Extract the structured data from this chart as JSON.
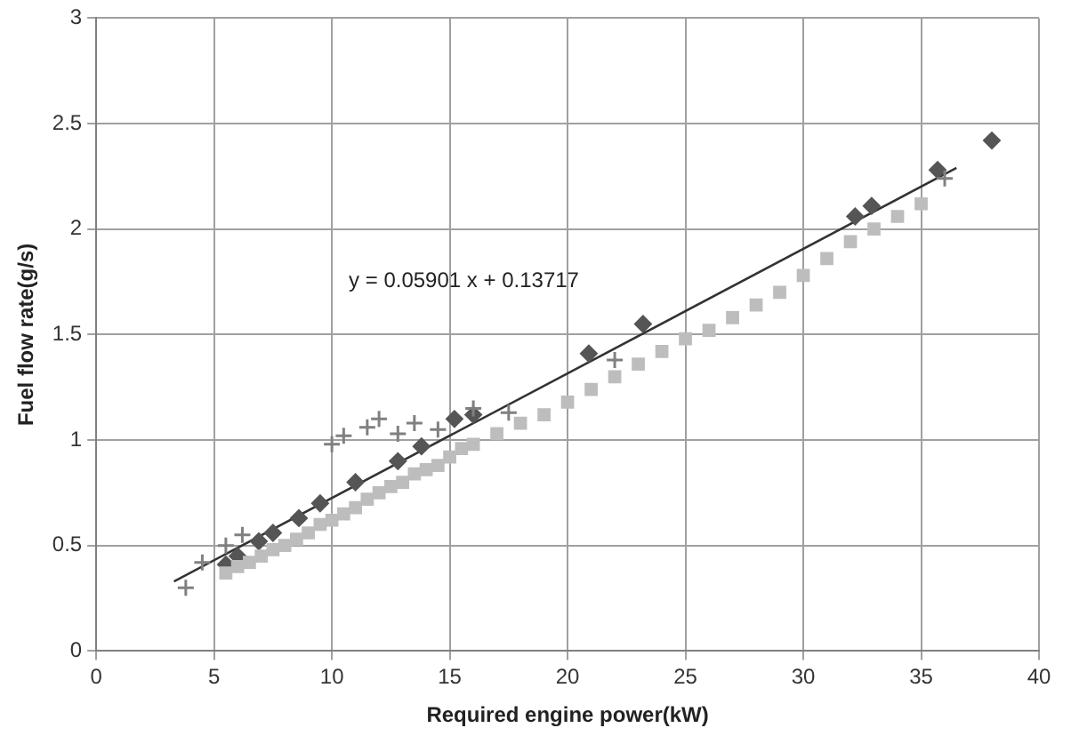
{
  "chart_data": {
    "type": "scatter",
    "xlabel": "Required engine power(kW)",
    "ylabel": "Fuel flow rate(g/s)",
    "xlim": [
      0,
      40
    ],
    "xticks": [
      0,
      5,
      10,
      15,
      20,
      25,
      30,
      35,
      40
    ],
    "ylim": [
      0,
      3
    ],
    "yticks": [
      0,
      0.5,
      1,
      1.5,
      2,
      2.5,
      3
    ],
    "grid": true,
    "annotations": [
      "y = 0.05901 x + 0.13717"
    ],
    "series": [
      {
        "color": "#bdbdbd",
        "marker": "square",
        "x": [
          5.5,
          6,
          6.5,
          7,
          7.5,
          8,
          8.5,
          9,
          9.5,
          10,
          10.5,
          11,
          11.5,
          12,
          12.5,
          13,
          13.5,
          14,
          14.5,
          15,
          15.5,
          16,
          17,
          18,
          19,
          20,
          21,
          22,
          23,
          24,
          25,
          26,
          27,
          28,
          29,
          30,
          31,
          32,
          33,
          34,
          35
        ],
        "values": [
          0.37,
          0.4,
          0.42,
          0.45,
          0.48,
          0.5,
          0.53,
          0.56,
          0.6,
          0.62,
          0.65,
          0.68,
          0.72,
          0.75,
          0.78,
          0.8,
          0.84,
          0.86,
          0.88,
          0.92,
          0.96,
          0.98,
          1.03,
          1.08,
          1.12,
          1.18,
          1.24,
          1.3,
          1.36,
          1.42,
          1.48,
          1.52,
          1.58,
          1.64,
          1.7,
          1.78,
          1.86,
          1.94,
          2,
          2.06,
          2.12
        ]
      },
      {
        "color": "#808080",
        "marker": "cross",
        "x": [
          3.8,
          4.5,
          5.5,
          6.2,
          10,
          10.5,
          11.5,
          12,
          12.8,
          13.5,
          14.5,
          16,
          17.5,
          22,
          36
        ],
        "values": [
          0.3,
          0.42,
          0.5,
          0.55,
          0.98,
          1.02,
          1.06,
          1.1,
          1.03,
          1.08,
          1.05,
          1.15,
          1.13,
          1.38,
          2.24
        ]
      },
      {
        "color": "#555555",
        "marker": "diamond",
        "x": [
          5.5,
          6,
          6.9,
          7.5,
          8.6,
          9.5,
          11,
          12.8,
          13.8,
          15.2,
          16,
          20.9,
          23.2,
          32.2,
          32.9,
          35.7,
          38
        ],
        "values": [
          0.41,
          0.45,
          0.52,
          0.56,
          0.63,
          0.7,
          0.8,
          0.9,
          0.97,
          1.1,
          1.12,
          1.41,
          1.55,
          2.06,
          2.11,
          2.28,
          2.42
        ]
      },
      {
        "type": "line",
        "color": "#333333",
        "marker": "none",
        "x": [
          3.3,
          36.5
        ],
        "values": [
          0.33,
          2.29
        ]
      }
    ]
  }
}
